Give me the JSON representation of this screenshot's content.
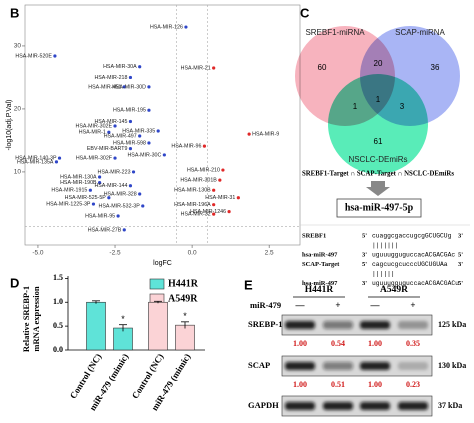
{
  "panel_labels": [
    "B",
    "C",
    "D",
    "E"
  ],
  "chart_data": [
    {
      "type": "scatter",
      "x_label": "logFC",
      "y_label": "-log10(adj.P.Val)",
      "xlim": [
        -5.42,
        3.5
      ],
      "ylim": [
        -1.6,
        36.5
      ],
      "xticks": [
        {
          "value": -5,
          "label": "-5.0"
        },
        {
          "value": -2.5,
          "label": "-2.5"
        },
        {
          "value": 0,
          "label": "0.0"
        },
        {
          "value": 2.5,
          "label": "2.5"
        }
      ],
      "yticks": [
        10,
        20,
        30
      ],
      "vlines": [
        -0.5,
        0.5
      ],
      "hline": 1.3,
      "down_color": "#2f46c8",
      "up_color": "#e02828",
      "point_labels": [
        "HSA-MIR-126",
        "HSA-MIR-520E",
        "HSA-MIR-30A",
        "HSA-MIR-21",
        "HSA-MIR-218",
        "HSA-MIR-451",
        "HSA-MIR-30D",
        "HSA-MIR-195",
        "HSA-MIR-145",
        "HSA-MIR-302E",
        "HSA-MIR-335",
        "HSA-MIR-1",
        "HSA-MIR-497",
        "HSA-MIR-9",
        "HSA-MIR-598",
        "HSA-MIR-96",
        "EBV-MIR-BART9",
        "HSA-MIR-30C",
        "HSA-MIR-140-3P",
        "HSA-MIR-302F",
        "HSA-MIR-135A",
        "HSA-MIR-210",
        "HSA-MIR-223",
        "HSA-MIR-130A",
        "HSA-MIR-301B",
        "HSA-MIR-190B",
        "HSA-MIR-144",
        "HSA-MIR-1915",
        "HSA-MIR-130B",
        "HSA-MIR-328",
        "HSA-MIR-525-5P",
        "HSA-MIR-31",
        "HSA-MIR-1225-3P",
        "HSA-MIR-532-3P",
        "HSA-MIR-196A",
        "HSA-MIR-1246",
        "HSA-MIR-95",
        "HSA-MIR-32",
        "HSA-MIR-27B"
      ],
      "x": [
        -0.2,
        -4.45,
        -1.7,
        0.7,
        -2.0,
        -2.2,
        -1.4,
        -1.4,
        -2.0,
        -2.5,
        -1.1,
        -2.7,
        -1.7,
        1.85,
        -1.4,
        0.4,
        -2.0,
        -0.9,
        -4.3,
        -2.5,
        -4.4,
        1.0,
        -1.9,
        -3.0,
        0.9,
        -3.0,
        -2.0,
        -3.3,
        0.7,
        -1.7,
        -2.7,
        1.5,
        -3.2,
        -1.6,
        0.7,
        1.2,
        -2.4,
        0.7,
        -2.2
      ],
      "values": [
        33,
        28.4,
        26.7,
        26.5,
        25,
        23.5,
        23.5,
        19.8,
        18,
        17.3,
        16.5,
        16.3,
        15.7,
        16,
        14.6,
        14.1,
        13.7,
        12.7,
        12.2,
        12.2,
        11.6,
        10.3,
        10,
        9.2,
        8.7,
        8.3,
        7.8,
        7.1,
        7.1,
        6.5,
        5.9,
        5.9,
        4.9,
        4.6,
        4.8,
        3.7,
        3,
        3.3,
        0.8
      ]
    },
    {
      "type": "bar",
      "y_label": [
        "Relative SREBP-1",
        "mRNA expression"
      ],
      "categories": [
        "Control (NC)",
        "miR-479 (mimic)"
      ],
      "ylim": [
        0,
        1.55
      ],
      "yticks": [
        {
          "value": 0,
          "label": "0.0"
        },
        {
          "value": 0.5,
          "label": "0.5"
        },
        {
          "value": 1,
          "label": "1.0"
        },
        {
          "value": 1.5,
          "label": "1.5"
        }
      ],
      "series": [
        {
          "name": "H441R",
          "color": "#5fe3d8",
          "values": [
            1.0,
            0.46
          ],
          "errors": [
            0.03,
            0.07
          ],
          "marks": [
            null,
            "*"
          ]
        },
        {
          "name": "A549R",
          "color": "#fbd3d6",
          "values": [
            1.0,
            0.52
          ],
          "errors": [
            0.02,
            0.07
          ],
          "marks": [
            null,
            "*"
          ]
        }
      ]
    }
  ],
  "venn": {
    "sets": [
      {
        "name": "SREBF1-miRNA",
        "color": "#f49aa8"
      },
      {
        "name": "SCAP-miRNA",
        "color": "#8c9cf2"
      },
      {
        "name": "NSCLC-DEmiRs",
        "color": "#22e6a0"
      }
    ],
    "regions": [
      60,
      20,
      36,
      1,
      1,
      3,
      61
    ],
    "intersection": "SREBF1-Target ∩ SCAP-Target ∩ NSCLC-DEmiRs",
    "result": "hsa-miR-497-5p"
  },
  "alignment": [
    [
      "SREBF1",
      "5'",
      "cuaggcgaccugcgGCUGCUg",
      "3'"
    ],
    [
      "",
      "",
      "|||||||",
      ""
    ],
    [
      "hsa-miR-497",
      "3'",
      "uguuugguguccacACGACGAc",
      "5'"
    ],
    [
      "SCAP-Target",
      "5'",
      "cagcucgcucccUGCUGUAa",
      "3'"
    ],
    [
      "",
      "",
      "||||||",
      ""
    ],
    [
      "hsa-miR-497",
      "3'",
      "uguuugguguccacACGACGACu",
      "5'"
    ]
  ],
  "blot": {
    "groups": [
      "H441R",
      "A549R"
    ],
    "treatment": "miR-479",
    "signs": [
      "—",
      "+",
      "—",
      "+"
    ],
    "rows": [
      {
        "name": "SREBP-1",
        "size": "125 kDa",
        "values": [
          1.0,
          0.54,
          1.0,
          0.35
        ],
        "value_labels": [
          "1.00",
          "0.54",
          "1.00",
          "0.35"
        ]
      },
      {
        "name": "SCAP",
        "size": "130 kDa",
        "values": [
          1.0,
          0.51,
          1.0,
          0.23
        ],
        "value_labels": [
          "1.00",
          "0.51",
          "1.00",
          "0.23"
        ]
      },
      {
        "name": "GAPDH",
        "size": "37 kDa"
      }
    ]
  }
}
